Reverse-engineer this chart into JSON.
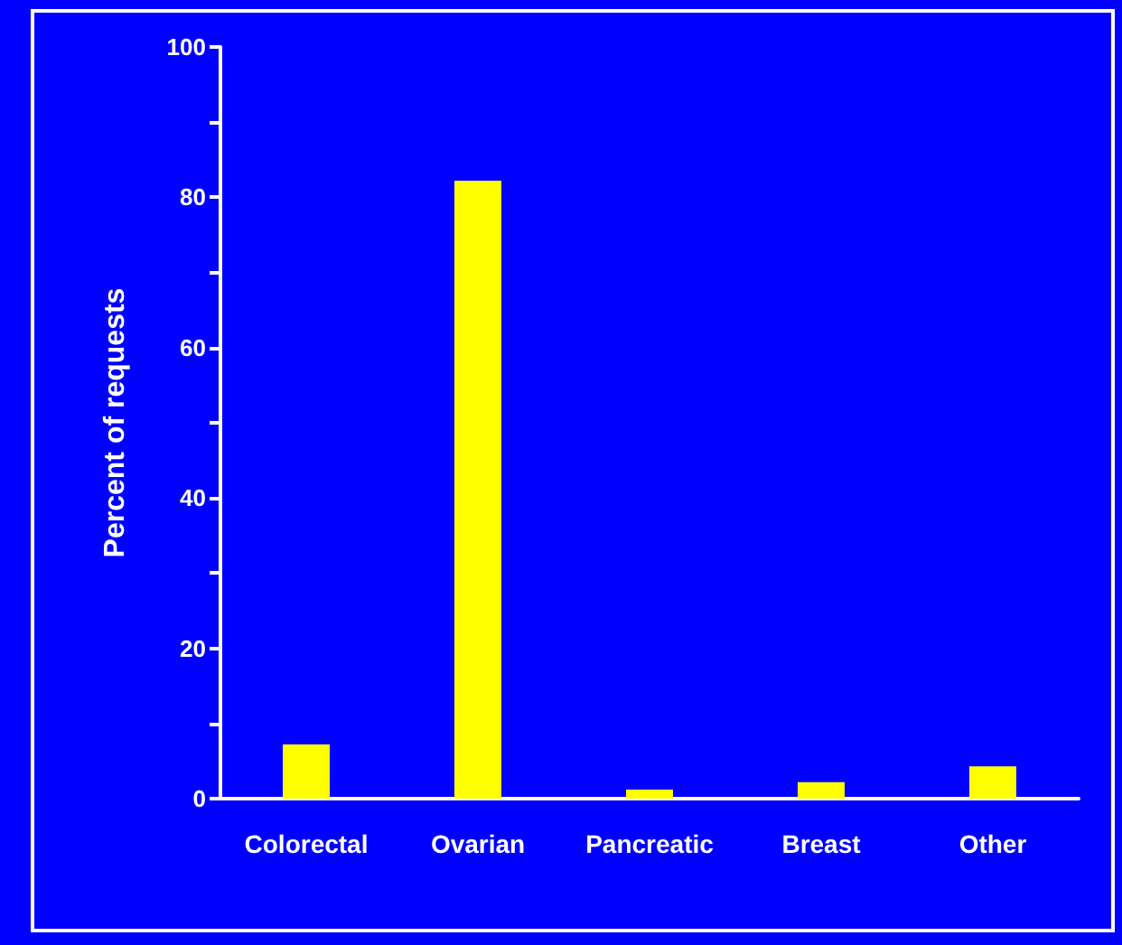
{
  "chart_data": {
    "type": "bar",
    "ylabel": "Percent of requests",
    "categories": [
      "Colorectal",
      "Ovarian",
      "Pancreatic",
      "Breast",
      "Other"
    ],
    "values": [
      7.2,
      82.2,
      1.2,
      2.2,
      4.3
    ],
    "color": "#ffff00",
    "ylim": [
      0,
      100
    ],
    "yticks": [
      0,
      {
        "value": 10,
        "label": null
      },
      20,
      {
        "value": 30,
        "label": null
      },
      40,
      {
        "value": 50,
        "label": null
      },
      60,
      {
        "value": 70,
        "label": null
      },
      80,
      {
        "value": 90,
        "label": null
      },
      100
    ],
    "grid": false
  }
}
